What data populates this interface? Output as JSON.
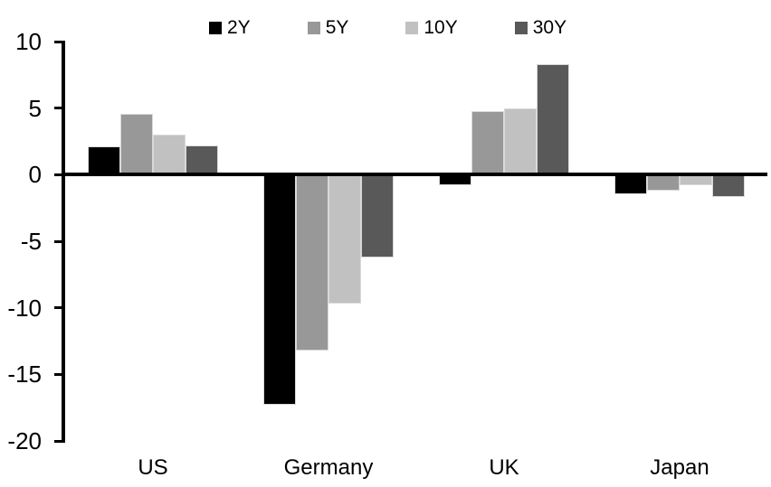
{
  "chart_data": {
    "type": "bar",
    "title": "",
    "xlabel": "",
    "ylabel": "",
    "categories": [
      "US",
      "Germany",
      "UK",
      "Japan"
    ],
    "series": [
      {
        "name": "2Y",
        "color": "#000000",
        "values": [
          2.1,
          -17.3,
          -0.8,
          -1.5
        ]
      },
      {
        "name": "5Y",
        "color": "#989898",
        "values": [
          4.6,
          -13.2,
          4.8,
          -1.2
        ]
      },
      {
        "name": "10Y",
        "color": "#c1c1c1",
        "values": [
          3.0,
          -9.7,
          5.0,
          -0.8
        ]
      },
      {
        "name": "30Y",
        "color": "#595959",
        "values": [
          2.2,
          -6.2,
          8.3,
          -1.7
        ]
      }
    ],
    "ylim": [
      -20,
      10
    ],
    "y_ticks": [
      10,
      5,
      0,
      -5,
      -10,
      -15,
      -20
    ],
    "y_tick_labels": [
      "10",
      "5",
      "0",
      "-5",
      "-10",
      "-15",
      "-20"
    ],
    "grid": false,
    "legend_position": "top",
    "axis_color": "#000000",
    "background_color": "#ffffff",
    "bar_edge_color": "#d9d9d9"
  }
}
